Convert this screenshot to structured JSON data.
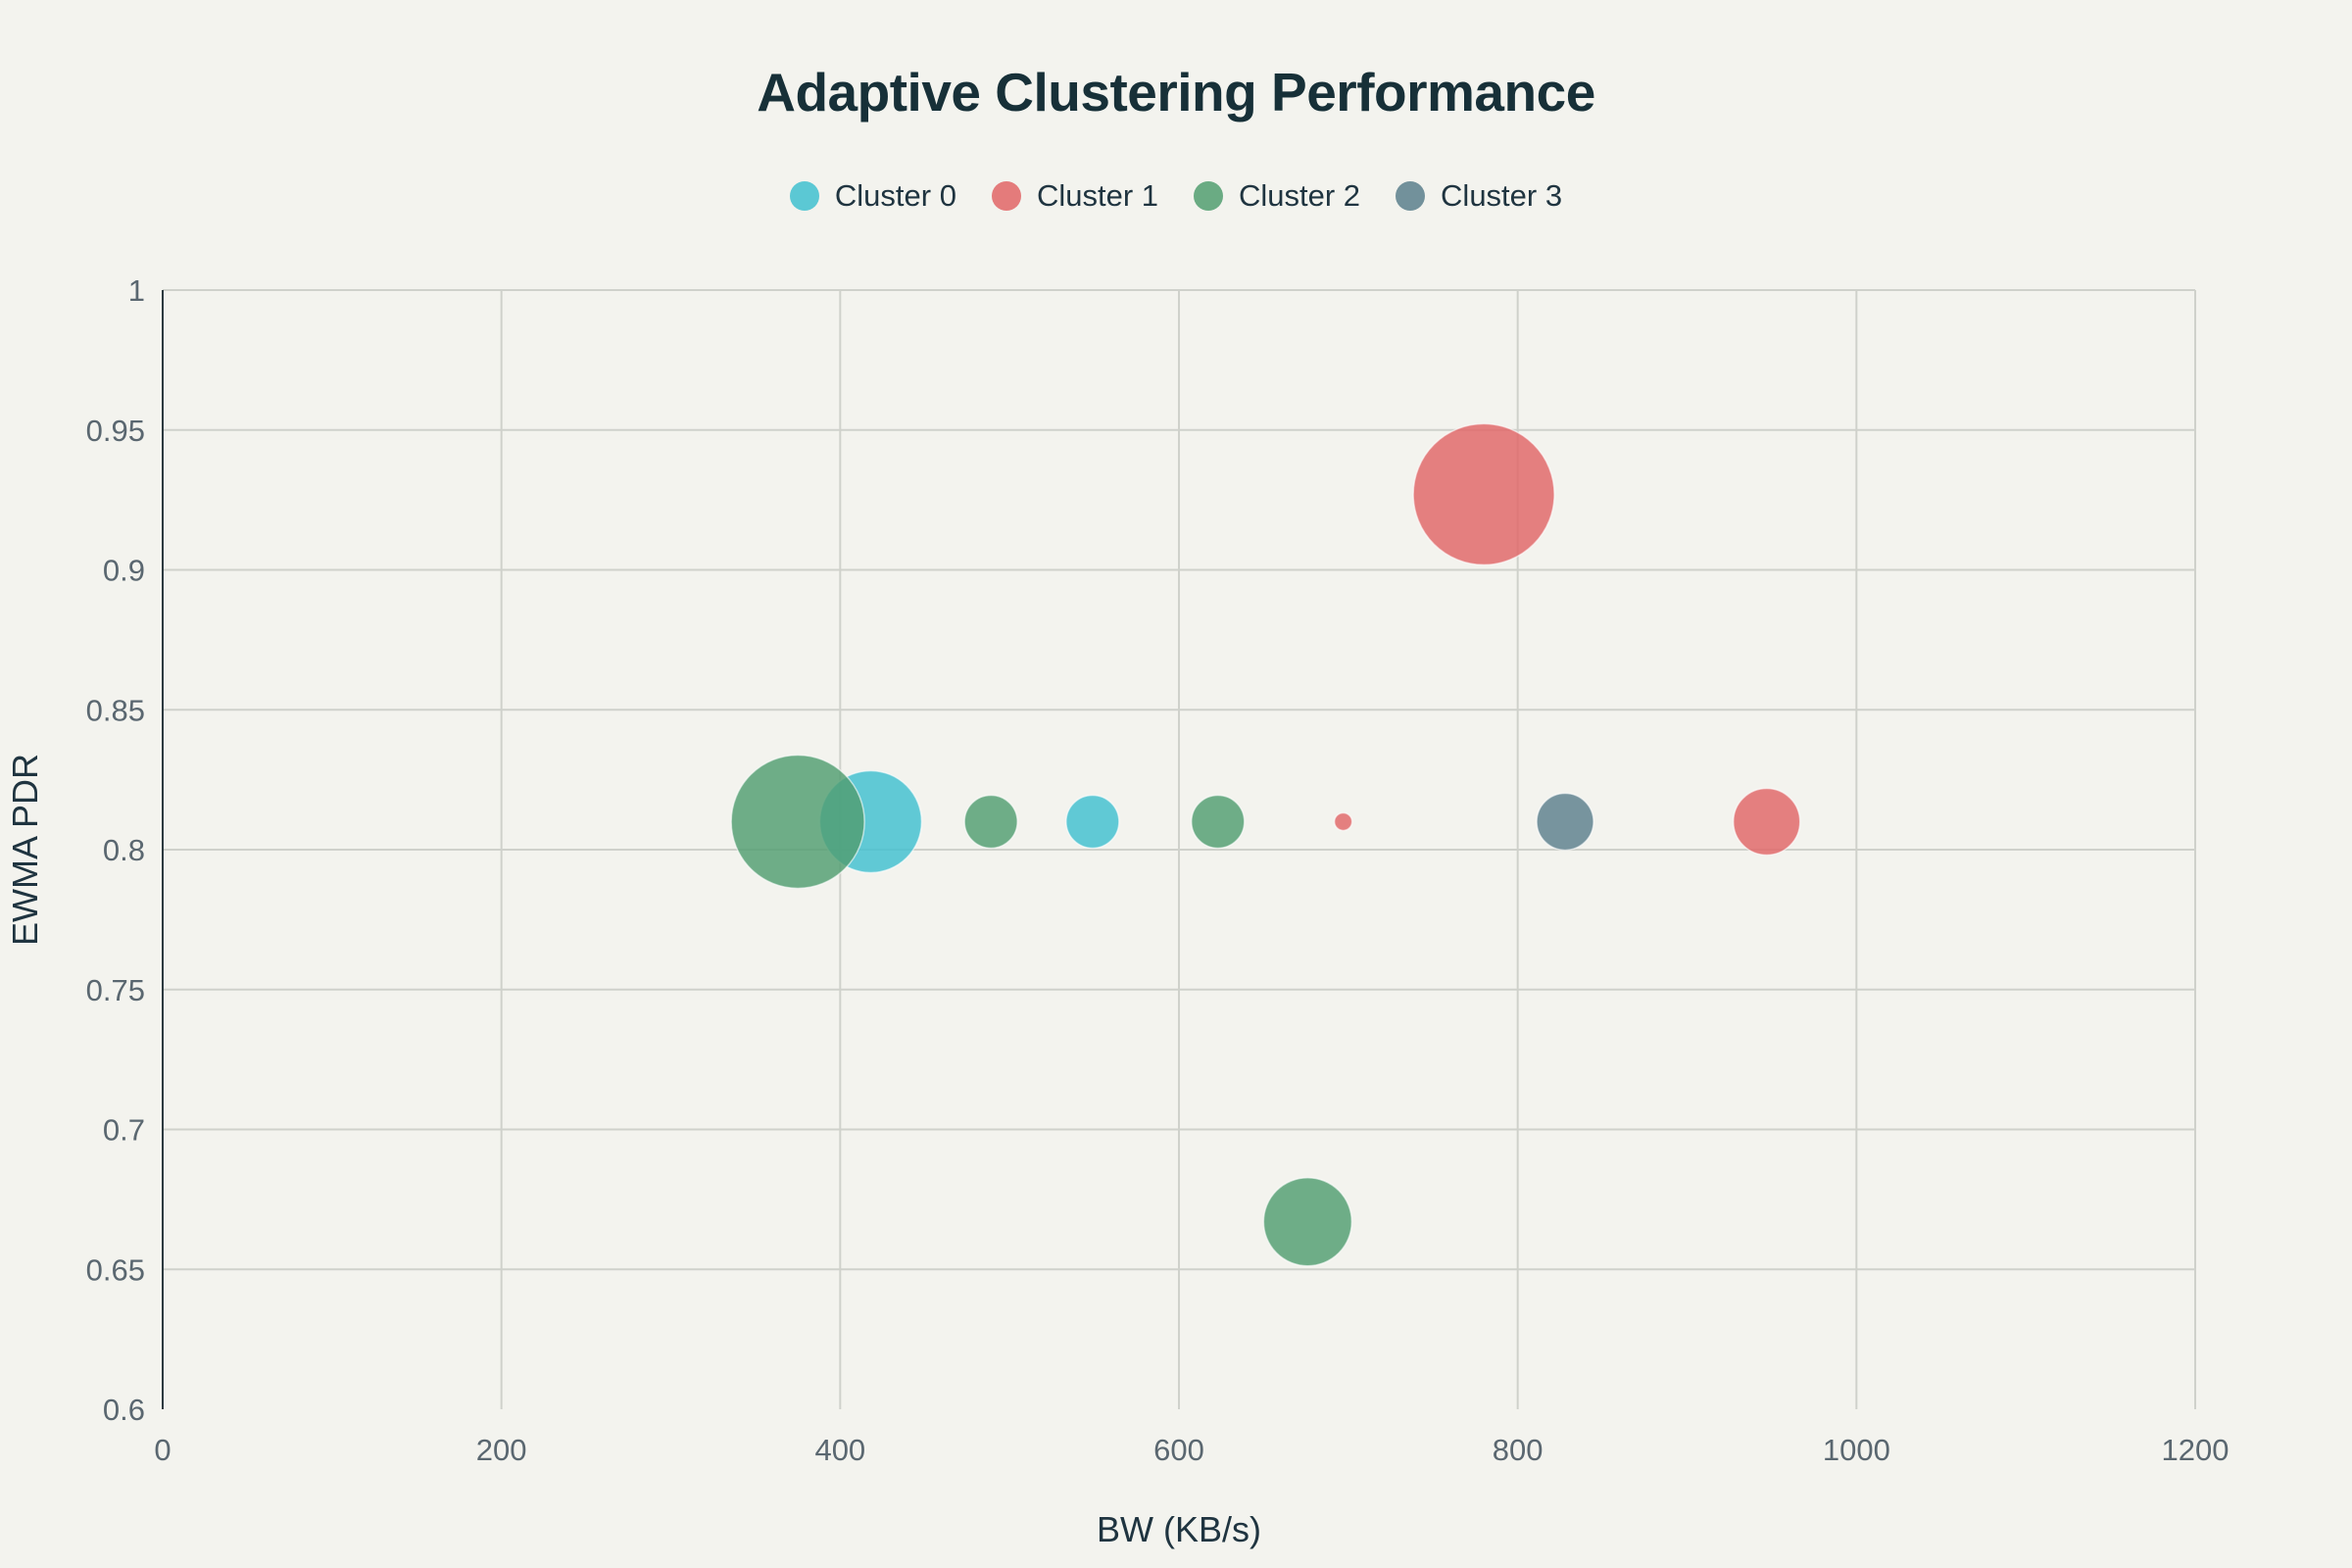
{
  "chart_data": {
    "type": "scatter",
    "title": "Adaptive Clustering Performance",
    "xlabel": "BW (KB/s)",
    "ylabel": "EWMA PDR",
    "xlim": [
      0,
      1200
    ],
    "ylim": [
      0.6,
      1
    ],
    "xticks": [
      "0",
      "200",
      "400",
      "600",
      "800",
      "1000",
      "1200"
    ],
    "yticks": [
      "0.6",
      "0.65",
      "0.7",
      "0.75",
      "0.8",
      "0.85",
      "0.9",
      "0.95",
      "1"
    ],
    "grid": true,
    "legend_placement": "top-center",
    "marker": "bubble",
    "series": [
      {
        "name": "Cluster 0",
        "color": "#3fbfcf",
        "points": [
          {
            "x": 418,
            "y": 0.81,
            "size": 52
          },
          {
            "x": 549,
            "y": 0.81,
            "size": 27
          }
        ]
      },
      {
        "name": "Cluster 1",
        "color": "#e06566",
        "points": [
          {
            "x": 780,
            "y": 0.927,
            "size": 72
          },
          {
            "x": 697,
            "y": 0.81,
            "size": 9
          },
          {
            "x": 947,
            "y": 0.81,
            "size": 34
          }
        ]
      },
      {
        "name": "Cluster 2",
        "color": "#519e70",
        "points": [
          {
            "x": 375,
            "y": 0.81,
            "size": 68
          },
          {
            "x": 489,
            "y": 0.81,
            "size": 27
          },
          {
            "x": 623,
            "y": 0.81,
            "size": 27
          },
          {
            "x": 676,
            "y": 0.667,
            "size": 45
          }
        ]
      },
      {
        "name": "Cluster 3",
        "color": "#5b7f8c",
        "points": [
          {
            "x": 828,
            "y": 0.81,
            "size": 29
          }
        ]
      }
    ]
  }
}
